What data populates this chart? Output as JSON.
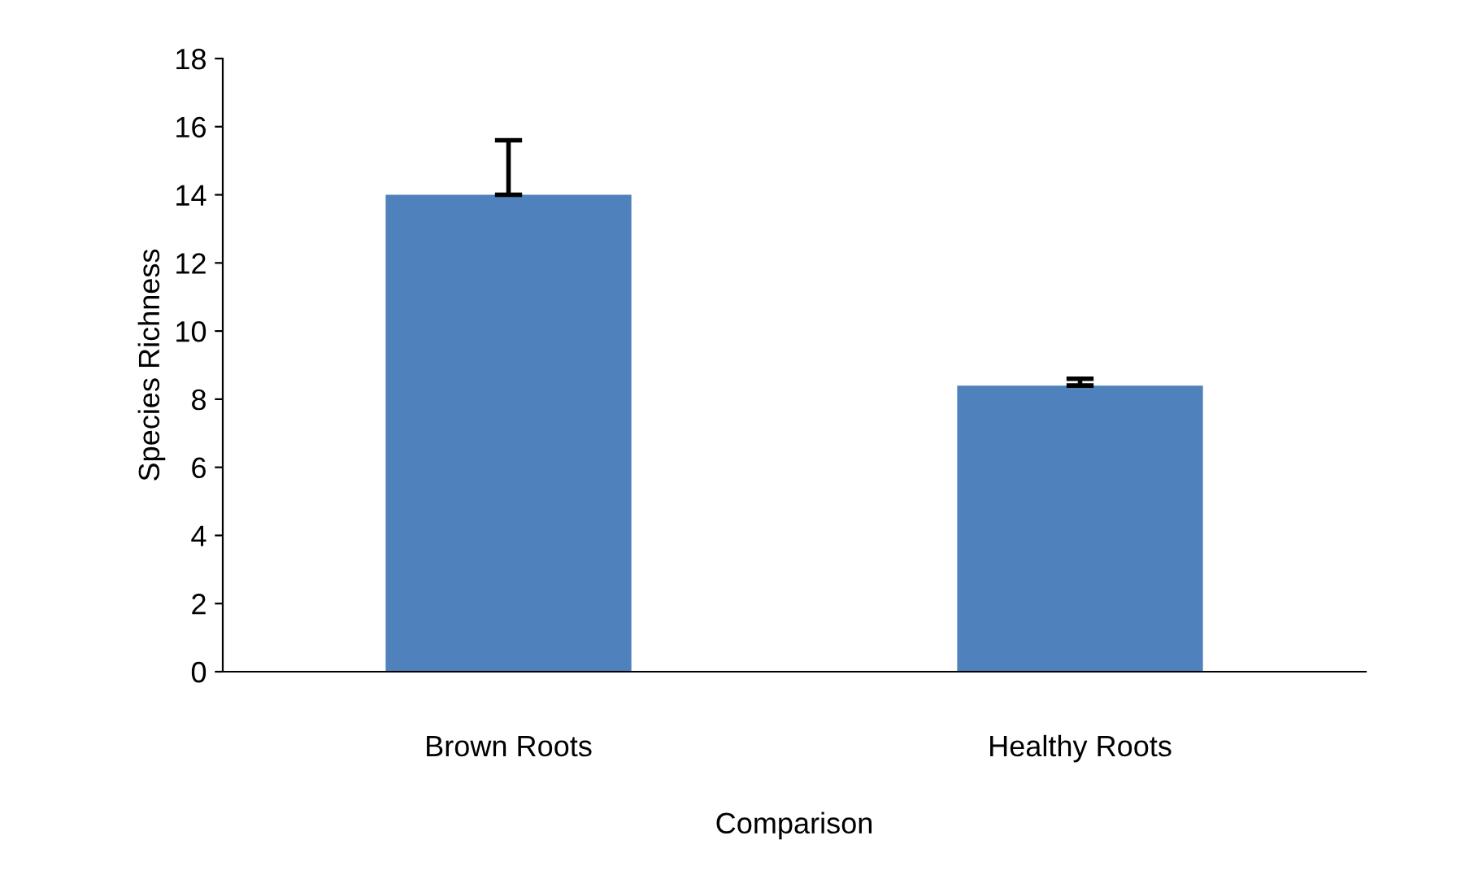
{
  "chart_data": {
    "type": "bar",
    "xlabel": "Comparison",
    "ylabel": "Species Richness",
    "categories": [
      "Brown Roots",
      "Healthy Roots"
    ],
    "values": [
      14.0,
      8.4
    ],
    "color": "#4f81bd",
    "errors": [
      [
        14.0,
        15.6
      ],
      [
        8.4,
        8.6
      ]
    ],
    "ylim": [
      0,
      18
    ],
    "yticks": [
      0,
      2,
      4,
      6,
      8,
      10,
      12,
      14,
      16,
      18
    ],
    "grid": false,
    "legend": false
  }
}
